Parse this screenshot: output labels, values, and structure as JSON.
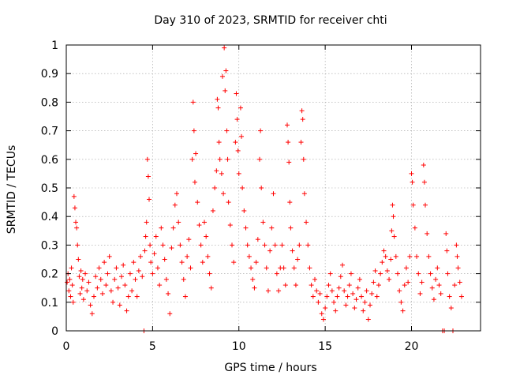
{
  "chart_data": {
    "type": "scatter",
    "title": "Day 310 of 2023, SRMTID for receiver chti",
    "xlabel": "GPS time / hours",
    "ylabel": "SRMTID / TECUs",
    "xlim": [
      0,
      24
    ],
    "ylim": [
      0,
      1
    ],
    "xticks": [
      0,
      5,
      10,
      15,
      20
    ],
    "yticks": [
      0,
      0.1,
      0.2,
      0.3,
      0.4,
      0.5,
      0.6,
      0.7,
      0.8,
      0.9,
      1
    ],
    "xtick_labels": [
      "0",
      "5",
      "10",
      "15",
      "20"
    ],
    "ytick_labels": [
      "0",
      "0.1",
      "0.2",
      "0.3",
      "0.4",
      "0.5",
      "0.6",
      "0.7",
      "0.8",
      "0.9",
      "1"
    ],
    "grid": true,
    "marker": "+",
    "series": [
      {
        "name": "SRMTID",
        "color": "#ff0000",
        "points": [
          [
            0.05,
            0.17
          ],
          [
            0.1,
            0.2
          ],
          [
            0.15,
            0.14
          ],
          [
            0.2,
            0.18
          ],
          [
            0.25,
            0.12
          ],
          [
            0.3,
            0.22
          ],
          [
            0.35,
            0.16
          ],
          [
            0.4,
            0.1
          ],
          [
            0.45,
            0.47
          ],
          [
            0.5,
            0.43
          ],
          [
            0.55,
            0.38
          ],
          [
            0.6,
            0.36
          ],
          [
            0.65,
            0.3
          ],
          [
            0.7,
            0.25
          ],
          [
            0.75,
            0.19
          ],
          [
            0.8,
            0.13
          ],
          [
            0.85,
            0.21
          ],
          [
            0.9,
            0.15
          ],
          [
            0.95,
            0.18
          ],
          [
            1.0,
            0.11
          ],
          [
            1.1,
            0.2
          ],
          [
            1.2,
            0.14
          ],
          [
            1.3,
            0.17
          ],
          [
            1.4,
            0.09
          ],
          [
            1.5,
            0.06
          ],
          [
            1.6,
            0.12
          ],
          [
            1.7,
            0.19
          ],
          [
            1.8,
            0.15
          ],
          [
            1.9,
            0.22
          ],
          [
            2.0,
            0.18
          ],
          [
            2.1,
            0.13
          ],
          [
            2.2,
            0.24
          ],
          [
            2.3,
            0.16
          ],
          [
            2.4,
            0.2
          ],
          [
            2.5,
            0.26
          ],
          [
            2.6,
            0.14
          ],
          [
            2.7,
            0.1
          ],
          [
            2.8,
            0.18
          ],
          [
            2.9,
            0.22
          ],
          [
            3.0,
            0.15
          ],
          [
            3.1,
            0.09
          ],
          [
            3.2,
            0.19
          ],
          [
            3.3,
            0.23
          ],
          [
            3.4,
            0.16
          ],
          [
            3.5,
            0.07
          ],
          [
            3.6,
            0.12
          ],
          [
            3.7,
            0.2
          ],
          [
            3.8,
            0.14
          ],
          [
            3.9,
            0.24
          ],
          [
            4.0,
            0.18
          ],
          [
            4.1,
            0.12
          ],
          [
            4.2,
            0.21
          ],
          [
            4.3,
            0.26
          ],
          [
            4.4,
            0.19
          ],
          [
            4.5,
            0.0
          ],
          [
            4.55,
            0.28
          ],
          [
            4.6,
            0.33
          ],
          [
            4.65,
            0.38
          ],
          [
            4.7,
            0.6
          ],
          [
            4.75,
            0.54
          ],
          [
            4.8,
            0.46
          ],
          [
            4.85,
            0.3
          ],
          [
            4.9,
            0.24
          ],
          [
            5.0,
            0.2
          ],
          [
            5.1,
            0.27
          ],
          [
            5.2,
            0.33
          ],
          [
            5.3,
            0.22
          ],
          [
            5.4,
            0.16
          ],
          [
            5.5,
            0.36
          ],
          [
            5.6,
            0.3
          ],
          [
            5.7,
            0.25
          ],
          [
            5.8,
            0.18
          ],
          [
            5.9,
            0.13
          ],
          [
            6.0,
            0.06
          ],
          [
            6.1,
            0.29
          ],
          [
            6.2,
            0.36
          ],
          [
            6.3,
            0.44
          ],
          [
            6.4,
            0.48
          ],
          [
            6.5,
            0.38
          ],
          [
            6.6,
            0.3
          ],
          [
            6.7,
            0.24
          ],
          [
            6.8,
            0.18
          ],
          [
            6.9,
            0.12
          ],
          [
            7.0,
            0.26
          ],
          [
            7.1,
            0.32
          ],
          [
            7.2,
            0.22
          ],
          [
            7.3,
            0.6
          ],
          [
            7.35,
            0.8
          ],
          [
            7.4,
            0.7
          ],
          [
            7.45,
            0.52
          ],
          [
            7.5,
            0.62
          ],
          [
            7.6,
            0.45
          ],
          [
            7.7,
            0.37
          ],
          [
            7.8,
            0.3
          ],
          [
            7.9,
            0.24
          ],
          [
            8.0,
            0.38
          ],
          [
            8.1,
            0.33
          ],
          [
            8.2,
            0.26
          ],
          [
            8.3,
            0.2
          ],
          [
            8.4,
            0.15
          ],
          [
            8.5,
            0.42
          ],
          [
            8.6,
            0.5
          ],
          [
            8.7,
            0.56
          ],
          [
            8.75,
            0.81
          ],
          [
            8.8,
            0.78
          ],
          [
            8.85,
            0.66
          ],
          [
            8.9,
            0.6
          ],
          [
            9.0,
            0.55
          ],
          [
            9.05,
            0.89
          ],
          [
            9.1,
            0.48
          ],
          [
            9.15,
            0.99
          ],
          [
            9.2,
            0.84
          ],
          [
            9.25,
            0.91
          ],
          [
            9.3,
            0.7
          ],
          [
            9.35,
            0.6
          ],
          [
            9.4,
            0.45
          ],
          [
            9.5,
            0.37
          ],
          [
            9.6,
            0.3
          ],
          [
            9.7,
            0.24
          ],
          [
            9.8,
            0.66
          ],
          [
            9.85,
            0.83
          ],
          [
            9.9,
            0.74
          ],
          [
            9.95,
            0.63
          ],
          [
            10.0,
            0.55
          ],
          [
            10.1,
            0.78
          ],
          [
            10.15,
            0.68
          ],
          [
            10.2,
            0.5
          ],
          [
            10.3,
            0.42
          ],
          [
            10.4,
            0.36
          ],
          [
            10.5,
            0.3
          ],
          [
            10.6,
            0.26
          ],
          [
            10.7,
            0.22
          ],
          [
            10.8,
            0.18
          ],
          [
            10.9,
            0.15
          ],
          [
            11.0,
            0.24
          ],
          [
            11.1,
            0.32
          ],
          [
            11.2,
            0.6
          ],
          [
            11.25,
            0.7
          ],
          [
            11.3,
            0.5
          ],
          [
            11.4,
            0.38
          ],
          [
            11.5,
            0.3
          ],
          [
            11.6,
            0.22
          ],
          [
            11.7,
            0.14
          ],
          [
            11.8,
            0.28
          ],
          [
            11.9,
            0.36
          ],
          [
            12.0,
            0.48
          ],
          [
            12.1,
            0.3
          ],
          [
            12.2,
            0.2
          ],
          [
            12.3,
            0.14
          ],
          [
            12.4,
            0.22
          ],
          [
            12.5,
            0.3
          ],
          [
            12.6,
            0.22
          ],
          [
            12.7,
            0.16
          ],
          [
            12.8,
            0.72
          ],
          [
            12.85,
            0.66
          ],
          [
            12.9,
            0.59
          ],
          [
            12.95,
            0.45
          ],
          [
            13.0,
            0.36
          ],
          [
            13.1,
            0.28
          ],
          [
            13.2,
            0.22
          ],
          [
            13.3,
            0.16
          ],
          [
            13.4,
            0.25
          ],
          [
            13.5,
            0.3
          ],
          [
            13.6,
            0.66
          ],
          [
            13.65,
            0.77
          ],
          [
            13.7,
            0.74
          ],
          [
            13.75,
            0.6
          ],
          [
            13.8,
            0.48
          ],
          [
            13.9,
            0.38
          ],
          [
            14.0,
            0.3
          ],
          [
            14.1,
            0.22
          ],
          [
            14.2,
            0.16
          ],
          [
            14.3,
            0.12
          ],
          [
            14.4,
            0.18
          ],
          [
            14.5,
            0.14
          ],
          [
            14.6,
            0.1
          ],
          [
            14.7,
            0.13
          ],
          [
            14.8,
            0.06
          ],
          [
            14.9,
            0.04
          ],
          [
            15.0,
            0.08
          ],
          [
            15.1,
            0.12
          ],
          [
            15.2,
            0.16
          ],
          [
            15.3,
            0.2
          ],
          [
            15.4,
            0.14
          ],
          [
            15.5,
            0.1
          ],
          [
            15.6,
            0.07
          ],
          [
            15.7,
            0.12
          ],
          [
            15.8,
            0.15
          ],
          [
            15.9,
            0.19
          ],
          [
            16.0,
            0.23
          ],
          [
            16.1,
            0.14
          ],
          [
            16.2,
            0.09
          ],
          [
            16.3,
            0.12
          ],
          [
            16.4,
            0.16
          ],
          [
            16.5,
            0.2
          ],
          [
            16.6,
            0.13
          ],
          [
            16.7,
            0.08
          ],
          [
            16.8,
            0.11
          ],
          [
            16.9,
            0.15
          ],
          [
            17.0,
            0.18
          ],
          [
            17.1,
            0.12
          ],
          [
            17.2,
            0.07
          ],
          [
            17.3,
            0.1
          ],
          [
            17.4,
            0.14
          ],
          [
            17.5,
            0.04
          ],
          [
            17.6,
            0.09
          ],
          [
            17.7,
            0.13
          ],
          [
            17.8,
            0.17
          ],
          [
            17.9,
            0.21
          ],
          [
            18.0,
            0.12
          ],
          [
            18.1,
            0.16
          ],
          [
            18.2,
            0.2
          ],
          [
            18.3,
            0.24
          ],
          [
            18.4,
            0.28
          ],
          [
            18.5,
            0.26
          ],
          [
            18.6,
            0.21
          ],
          [
            18.7,
            0.18
          ],
          [
            18.8,
            0.25
          ],
          [
            18.85,
            0.35
          ],
          [
            18.9,
            0.44
          ],
          [
            18.95,
            0.4
          ],
          [
            19.0,
            0.33
          ],
          [
            19.1,
            0.26
          ],
          [
            19.2,
            0.2
          ],
          [
            19.3,
            0.14
          ],
          [
            19.4,
            0.1
          ],
          [
            19.5,
            0.07
          ],
          [
            19.6,
            0.16
          ],
          [
            19.7,
            0.22
          ],
          [
            19.8,
            0.17
          ],
          [
            19.9,
            0.26
          ],
          [
            20.0,
            0.55
          ],
          [
            20.05,
            0.52
          ],
          [
            20.1,
            0.44
          ],
          [
            20.2,
            0.36
          ],
          [
            20.3,
            0.26
          ],
          [
            20.4,
            0.2
          ],
          [
            20.5,
            0.13
          ],
          [
            20.6,
            0.17
          ],
          [
            20.7,
            0.58
          ],
          [
            20.75,
            0.52
          ],
          [
            20.8,
            0.44
          ],
          [
            20.9,
            0.34
          ],
          [
            21.0,
            0.26
          ],
          [
            21.1,
            0.2
          ],
          [
            21.2,
            0.15
          ],
          [
            21.3,
            0.11
          ],
          [
            21.4,
            0.18
          ],
          [
            21.5,
            0.22
          ],
          [
            21.6,
            0.16
          ],
          [
            21.7,
            0.13
          ],
          [
            21.8,
            0.0
          ],
          [
            21.9,
            0.0
          ],
          [
            22.0,
            0.34
          ],
          [
            22.05,
            0.28
          ],
          [
            22.1,
            0.2
          ],
          [
            22.2,
            0.12
          ],
          [
            22.3,
            0.08
          ],
          [
            22.4,
            0.0
          ],
          [
            22.5,
            0.16
          ],
          [
            22.6,
            0.3
          ],
          [
            22.65,
            0.26
          ],
          [
            22.7,
            0.22
          ],
          [
            22.8,
            0.17
          ],
          [
            22.9,
            0.12
          ]
        ]
      }
    ]
  }
}
